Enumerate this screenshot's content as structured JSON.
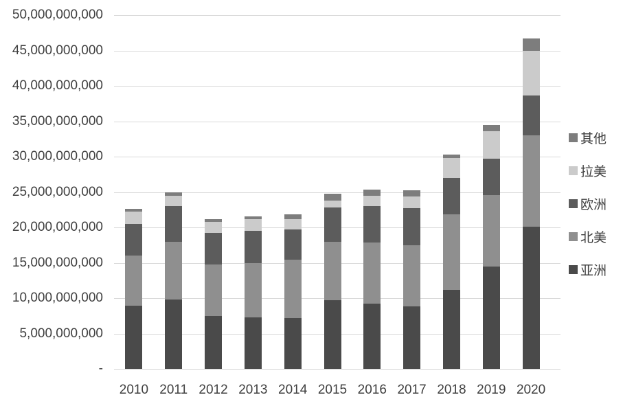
{
  "chart_data": {
    "type": "bar",
    "stacked": true,
    "title": "",
    "xlabel": "",
    "ylabel": "",
    "categories": [
      "2010",
      "2011",
      "2012",
      "2013",
      "2014",
      "2015",
      "2016",
      "2017",
      "2018",
      "2019",
      "2020"
    ],
    "series": [
      {
        "name": "亚洲",
        "color": "#4a4a4a",
        "values": [
          8900000000,
          9800000000,
          7500000000,
          7300000000,
          7200000000,
          9700000000,
          9200000000,
          8800000000,
          11200000000,
          14500000000,
          20100000000
        ]
      },
      {
        "name": "北美",
        "color": "#8f8f8f",
        "values": [
          7100000000,
          8200000000,
          7300000000,
          7700000000,
          8200000000,
          8300000000,
          8700000000,
          8700000000,
          10600000000,
          10100000000,
          12900000000
        ]
      },
      {
        "name": "欧洲",
        "color": "#5c5c5c",
        "values": [
          4500000000,
          5000000000,
          4400000000,
          4500000000,
          4300000000,
          4800000000,
          5100000000,
          5200000000,
          5200000000,
          5100000000,
          5600000000
        ]
      },
      {
        "name": "拉美",
        "color": "#cbcbcb",
        "values": [
          1700000000,
          1500000000,
          1600000000,
          1700000000,
          1500000000,
          1000000000,
          1500000000,
          1700000000,
          2800000000,
          3900000000,
          6400000000
        ]
      },
      {
        "name": "其他",
        "color": "#7d7d7d",
        "values": [
          400000000,
          500000000,
          400000000,
          400000000,
          600000000,
          1000000000,
          800000000,
          800000000,
          500000000,
          900000000,
          1700000000
        ]
      }
    ],
    "stack_order": "first series is bottom of stack",
    "ylim": [
      0,
      50000000000
    ],
    "y_tick_labels_top_to_bottom": [
      "50,000,000,000",
      "45,000,000,000",
      "40,000,000,000",
      "35,000,000,000",
      "30,000,000,000",
      "25,000,000,000",
      "20,000,000,000",
      "15,000,000,000",
      "10,000,000,000",
      "5,000,000,000",
      "-"
    ],
    "grid": "horizontal gridlines on",
    "legend_position": "right",
    "legend_order_top_to_bottom": [
      "其他",
      "拉美",
      "欧洲",
      "北美",
      "亚洲"
    ]
  },
  "colors": {
    "background": "#ffffff",
    "gridline": "#d9d9d9",
    "axis_text": "#404040"
  }
}
